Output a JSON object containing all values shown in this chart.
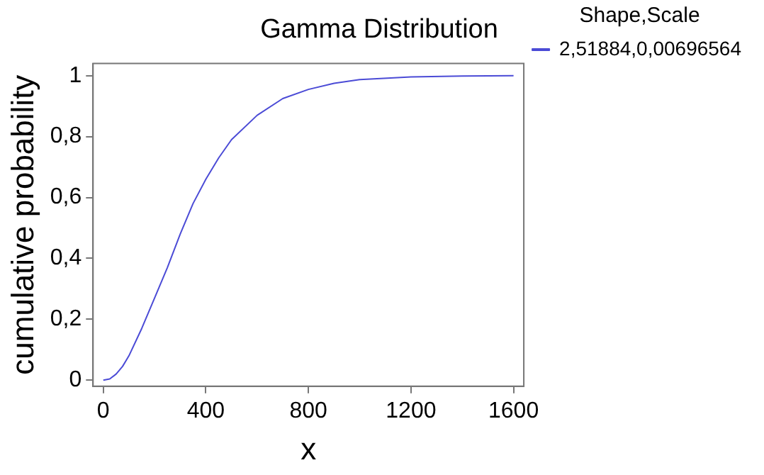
{
  "chart_data": {
    "type": "line",
    "title": "Gamma Distribution",
    "xlabel": "x",
    "ylabel": "cumulative probability",
    "legend_title": "Shape,Scale",
    "x": [
      0,
      25,
      50,
      75,
      100,
      150,
      200,
      250,
      300,
      350,
      400,
      450,
      500,
      600,
      700,
      800,
      900,
      1000,
      1200,
      1400,
      1600
    ],
    "series": [
      {
        "name": "2,51884,0,00696564",
        "color": "#4b4bd6",
        "values": [
          0,
          0.004,
          0.02,
          0.045,
          0.08,
          0.17,
          0.27,
          0.37,
          0.48,
          0.58,
          0.66,
          0.73,
          0.79,
          0.87,
          0.925,
          0.955,
          0.975,
          0.987,
          0.996,
          0.999,
          1.0
        ]
      }
    ],
    "xlim": [
      -40,
      1640
    ],
    "xticks": [
      0,
      400,
      800,
      1200,
      1600
    ],
    "ylim": [
      -0.02,
      1.04
    ],
    "yticks": [
      0,
      {
        "value": 0.2,
        "label": "0,2"
      },
      {
        "value": 0.4,
        "label": "0,4"
      },
      {
        "value": 0.6,
        "label": "0,6"
      },
      {
        "value": 0.8,
        "label": "0,8"
      },
      1
    ],
    "grid": false,
    "legend": "right",
    "marker": "none",
    "line_style": "solid"
  }
}
